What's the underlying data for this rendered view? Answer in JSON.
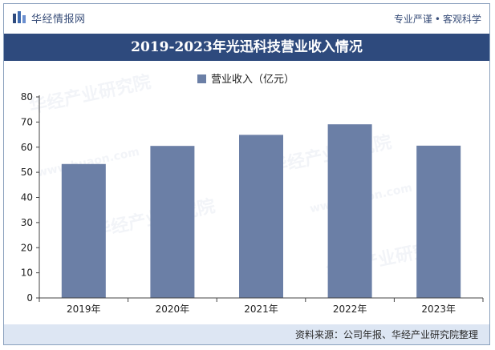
{
  "header": {
    "brand": "华经情报网",
    "slogan_left": "专业严谨",
    "slogan_sep": "•",
    "slogan_right": "客观科学"
  },
  "watermark": {
    "text": "华经产业研究院",
    "url": "www.huaon.com"
  },
  "footer": {
    "source": "资料来源：公司年报、华经产业研究院整理"
  },
  "colors": {
    "bar": "#6b7fa6",
    "title_bg": "#2e4a7d",
    "footer_bg": "#dde6f3"
  },
  "chart_data": {
    "type": "bar",
    "title": "2019-2023年光迅科技营业收入情况",
    "legend": "营业收入（亿元）",
    "legend_position": "top-center",
    "categories": [
      "2019年",
      "2020年",
      "2021年",
      "2022年",
      "2023年"
    ],
    "values": [
      53.3,
      60.5,
      64.9,
      69.1,
      60.6
    ],
    "yticks": [
      0,
      10,
      20,
      30,
      40,
      50,
      60,
      70,
      80
    ],
    "ylim": [
      0,
      80
    ],
    "grid": false,
    "xlabel": "",
    "ylabel": ""
  }
}
